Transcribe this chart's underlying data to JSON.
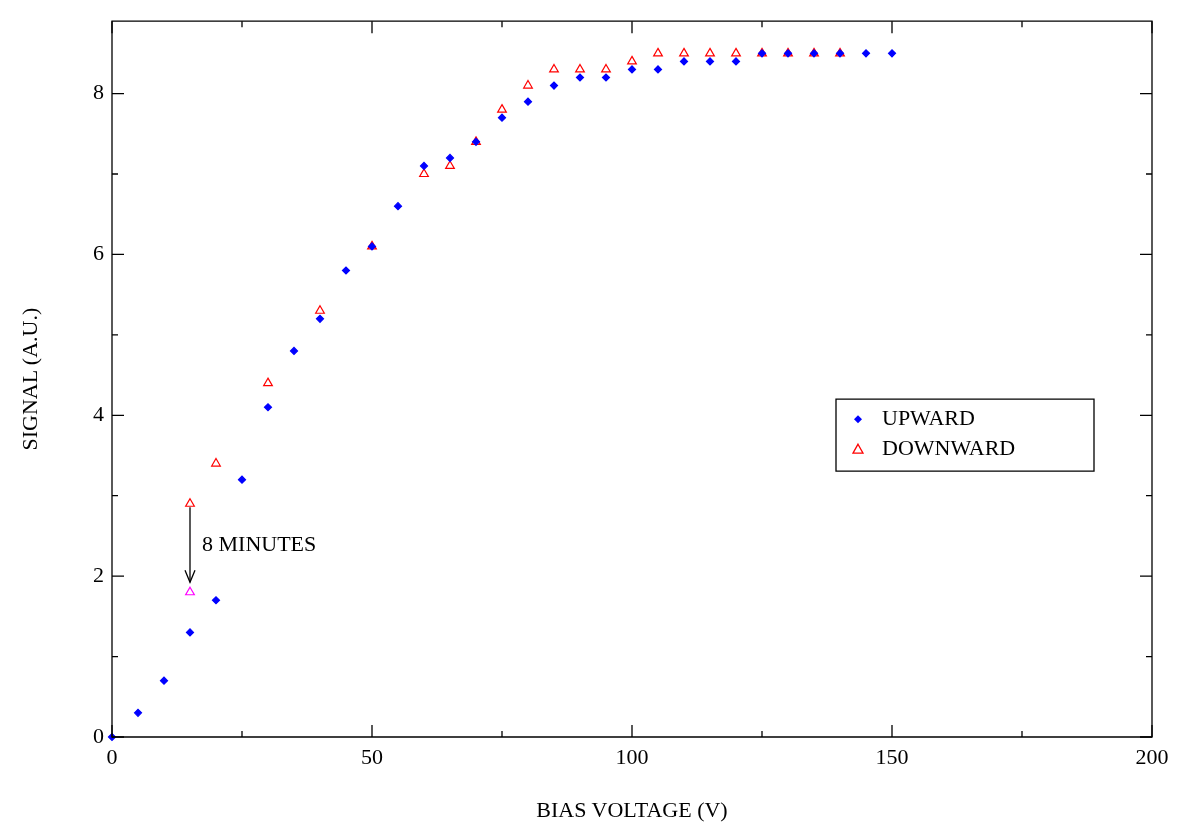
{
  "chart_data": {
    "type": "scatter",
    "xlabel": "BIAS VOLTAGE (V)",
    "ylabel": "SIGNAL (A.U.)",
    "xlim": [
      0,
      200
    ],
    "xticks": [
      0,
      {
        "value": 25,
        "label": null
      },
      50,
      {
        "value": 75,
        "label": null
      },
      100,
      {
        "value": 125,
        "label": null
      },
      150,
      {
        "value": 175,
        "label": null
      },
      200
    ],
    "ylim": [
      0,
      8.9
    ],
    "yticks": [
      0,
      {
        "value": 1,
        "label": null
      },
      2,
      {
        "value": 3,
        "label": null
      },
      4,
      {
        "value": 5,
        "label": null
      },
      6,
      {
        "value": 7,
        "label": null
      },
      8
    ],
    "grid": false,
    "legend": "right",
    "series": [
      {
        "name": "UPWARD",
        "color": "#0000ff",
        "marker": "diamond",
        "x": [
          0,
          5,
          10,
          15,
          20,
          25,
          30,
          35,
          40,
          45,
          50,
          55,
          60,
          65,
          70,
          75,
          80,
          85,
          90,
          95,
          100,
          105,
          110,
          115,
          120,
          125,
          130,
          135,
          140,
          145,
          150
        ],
        "values": [
          0,
          0.3,
          0.7,
          1.3,
          1.7,
          3.2,
          4.1,
          4.8,
          5.2,
          5.8,
          6.1,
          6.6,
          7.1,
          7.2,
          7.4,
          7.7,
          7.9,
          8.1,
          8.2,
          8.2,
          8.3,
          8.3,
          8.4,
          8.4,
          8.4,
          8.5,
          8.5,
          8.5,
          8.5,
          8.5,
          8.5
        ]
      },
      {
        "name": "DOWNWARD",
        "color": "#ff0000",
        "marker": "triangle",
        "x": [
          15,
          20,
          30,
          40,
          50,
          60,
          65,
          70,
          75,
          80,
          85,
          90,
          95,
          100,
          105,
          110,
          115,
          120,
          125,
          130,
          135,
          140
        ],
        "values": [
          2.9,
          3.4,
          4.4,
          5.3,
          6.1,
          7.0,
          7.1,
          7.4,
          7.8,
          8.1,
          8.3,
          8.3,
          8.3,
          8.4,
          8.5,
          8.5,
          8.5,
          8.5,
          8.5,
          8.5,
          8.5,
          8.5
        ]
      },
      {
        "color": "#ff00ff",
        "marker": "triangle",
        "x": [
          15
        ],
        "values": [
          1.8
        ]
      }
    ],
    "annotations": [
      {
        "text": "8 MINUTES",
        "x": 15,
        "y": 1.8
      }
    ]
  }
}
